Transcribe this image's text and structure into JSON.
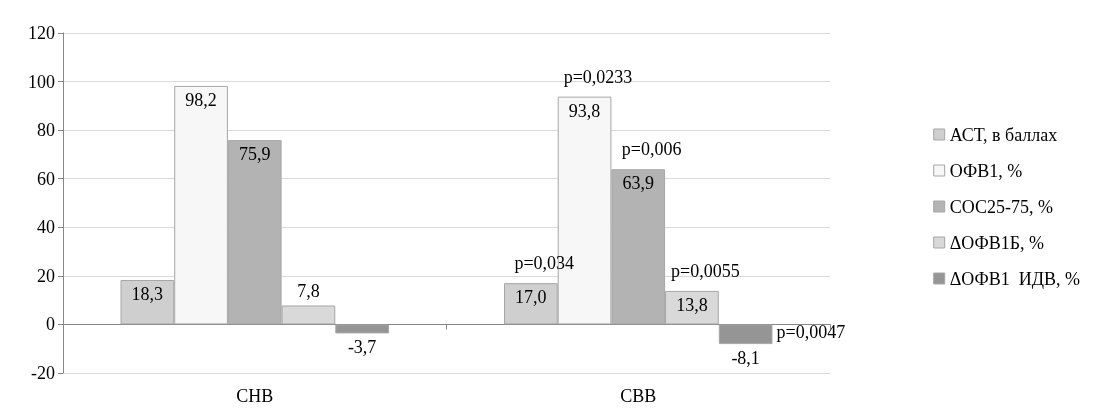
{
  "chart_data": {
    "type": "bar",
    "categories": [
      "СНВ",
      "СВВ"
    ],
    "series": [
      {
        "name": "АСТ, в баллах",
        "color": "#cfcfcf",
        "values": [
          18.3,
          17.0
        ],
        "value_labels": [
          "18,3",
          "17,0"
        ]
      },
      {
        "name": "ОФВ1, %",
        "color": "#f7f7f7",
        "values": [
          98.2,
          93.8
        ],
        "value_labels": [
          "98,2",
          "93,8"
        ]
      },
      {
        "name": "СОС25-75, %",
        "color": "#b3b3b3",
        "values": [
          75.9,
          63.9
        ],
        "value_labels": [
          "75,9",
          "63,9"
        ]
      },
      {
        "name": "ΔОФВ1Б, %",
        "color": "#d9d9d9",
        "values": [
          7.8,
          13.8
        ],
        "value_labels": [
          "7,8",
          "13,8"
        ]
      },
      {
        "name": "ΔОФВ1  ИДВ, %",
        "color": "#959595",
        "values": [
          -3.7,
          -8.1
        ],
        "value_labels": [
          "-3,7",
          "-8,1"
        ]
      }
    ],
    "annotations": [
      "p=0,034",
      "p=0,0233",
      "p=0,006",
      "p=0,0055",
      "p=0,0047"
    ],
    "ylim": [
      -20,
      120
    ],
    "yticks": [
      -20,
      0,
      20,
      40,
      60,
      80,
      100,
      120
    ],
    "grid": "y",
    "legend": "right"
  }
}
